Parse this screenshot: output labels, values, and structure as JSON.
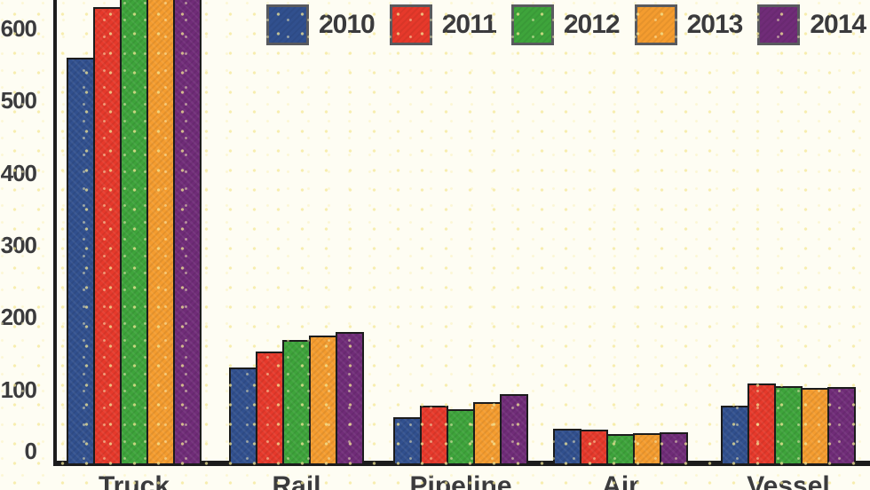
{
  "chart_data": {
    "type": "bar",
    "title": "",
    "xlabel": "",
    "ylabel": "",
    "categories": [
      "Truck",
      "Rail",
      "Pipeline",
      "Air",
      "Vessel"
    ],
    "series": [
      {
        "name": "2010",
        "color": "#31508e",
        "values": [
          560,
          130,
          62,
          45,
          78
        ]
      },
      {
        "name": "2011",
        "color": "#e6392b",
        "values": [
          630,
          152,
          77,
          44,
          108
        ]
      },
      {
        "name": "2012",
        "color": "#3ea43b",
        "values": [
          672,
          168,
          73,
          38,
          104
        ]
      },
      {
        "name": "2013",
        "color": "#f49c2f",
        "values": [
          672,
          174,
          82,
          39,
          102
        ]
      },
      {
        "name": "2014",
        "color": "#702c78",
        "values": [
          672,
          180,
          94,
          40,
          103
        ]
      }
    ],
    "ylim": [
      0,
      600
    ],
    "yticks": [
      0,
      100,
      200,
      300,
      400,
      500,
      600
    ],
    "grid": false,
    "legend_position": "top-center",
    "axis_color": "#1c1c1c",
    "bar_outline_color": "#1c1c1c",
    "text_color": "#3b3b3d",
    "background_color": "#fefdf3",
    "note": "Image is cropped at top and bottom edges; Truck 2012-2014 bar tops extend beyond the visible area (values approximate), x-axis category labels partially cut off at bottom."
  }
}
